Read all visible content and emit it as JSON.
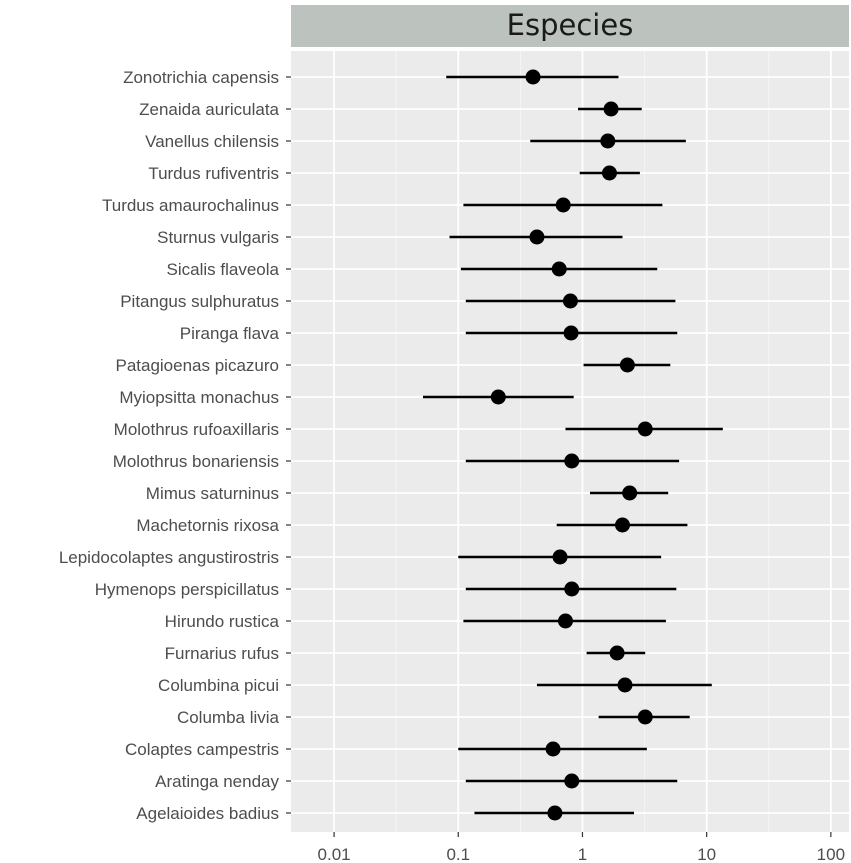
{
  "chart_data": {
    "type": "scatter",
    "title": "",
    "facet_label": "Especies",
    "xlabel": "",
    "ylabel": "",
    "x_scale": "log10",
    "xlim": [
      0.0045,
      140
    ],
    "x_ticks": [
      0.01,
      0.1,
      1,
      10,
      100
    ],
    "x_tick_labels": [
      "0.01",
      "0.1",
      "1",
      "10",
      "100"
    ],
    "grid": true,
    "legend": "none",
    "categories": [
      "Zonotrichia capensis",
      "Zenaida auriculata",
      "Vanellus chilensis",
      "Turdus rufiventris",
      "Turdus amaurochalinus",
      "Sturnus vulgaris",
      "Sicalis flaveola",
      "Pitangus sulphuratus",
      "Piranga flava",
      "Patagioenas picazuro",
      "Myiopsitta monachus",
      "Molothrus rufoaxillaris",
      "Molothrus bonariensis",
      "Mimus saturninus",
      "Machetornis rixosa",
      "Lepidocolaptes angustirostris",
      "Hymenops perspicillatus",
      "Hirundo rustica",
      "Furnarius rufus",
      "Columbina picui",
      "Columba livia",
      "Colaptes campestris",
      "Aratinga nenday",
      "Agelaioides badius"
    ],
    "estimate": [
      0.4,
      1.7,
      1.6,
      1.65,
      0.7,
      0.43,
      0.65,
      0.8,
      0.81,
      2.3,
      0.21,
      3.2,
      0.82,
      2.4,
      2.1,
      0.66,
      0.82,
      0.73,
      1.9,
      2.2,
      3.2,
      0.58,
      0.82,
      0.6
    ],
    "lower": [
      0.08,
      0.92,
      0.38,
      0.95,
      0.11,
      0.085,
      0.105,
      0.115,
      0.115,
      1.02,
      0.052,
      0.73,
      0.115,
      1.15,
      0.62,
      0.1,
      0.115,
      0.11,
      1.08,
      0.43,
      1.35,
      0.1,
      0.115,
      0.135
    ],
    "upper": [
      1.95,
      3.0,
      6.8,
      2.9,
      4.4,
      2.1,
      4.0,
      5.6,
      5.8,
      5.1,
      0.85,
      13.5,
      6.0,
      4.9,
      7.0,
      4.3,
      5.7,
      4.7,
      3.2,
      11.0,
      7.3,
      3.3,
      5.8,
      2.6
    ]
  },
  "colors": {
    "panel_background": "#ebebeb",
    "grid_major": "#ffffff",
    "strip_background": "#bcc2bd",
    "points": "#000000",
    "axis_text": "#4d4d4d"
  }
}
